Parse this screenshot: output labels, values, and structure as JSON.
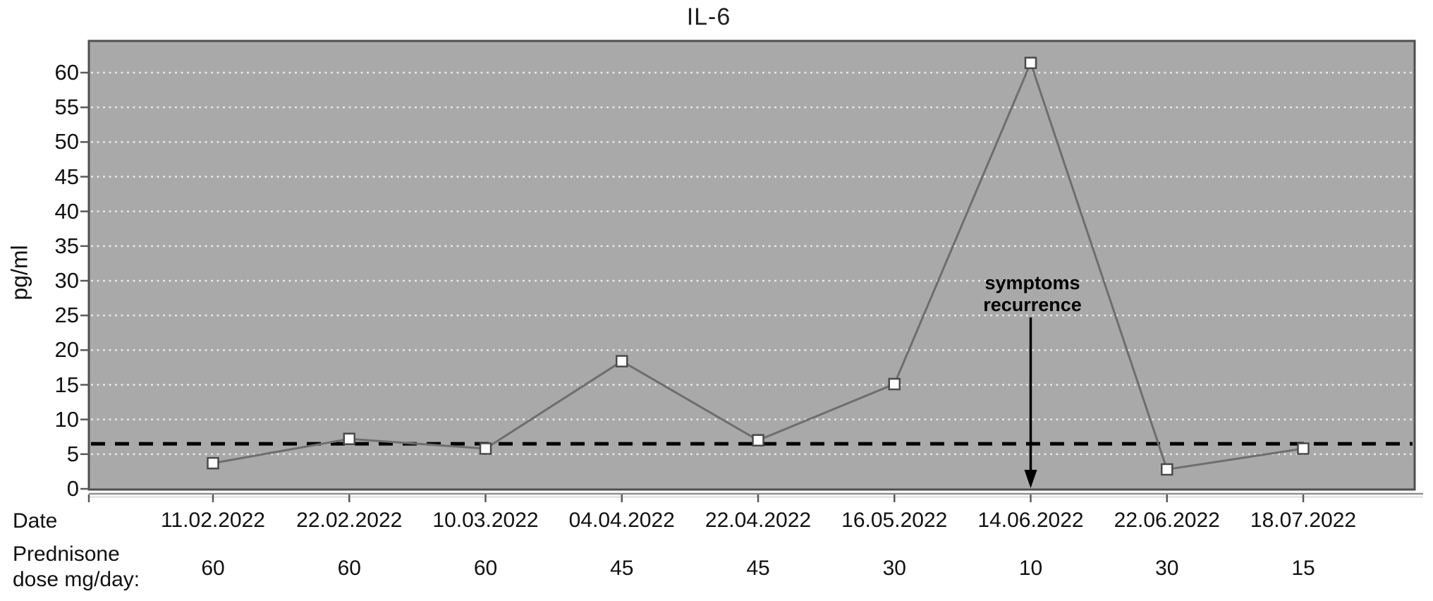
{
  "figure": {
    "title": "IL-6",
    "y_axis_label": "pg/ml",
    "date_row_label": "Date",
    "dose_label_line1": "Prednisone",
    "dose_label_line2": "dose mg/day:",
    "annotation_line1": "symptoms",
    "annotation_line2": "recurrence"
  },
  "chart_data": {
    "type": "line",
    "title": "IL-6",
    "xlabel": "Date",
    "ylabel": "pg/ml",
    "categories": [
      "11.02.2022",
      "22.02.2022",
      "10.03.2022",
      "04.04.2022",
      "22.04.2022",
      "16.05.2022",
      "14.06.2022",
      "22.06.2022",
      "18.07.2022"
    ],
    "series": [
      {
        "name": "IL-6 (pg/ml)",
        "values": [
          3.7,
          7.2,
          5.8,
          18.4,
          7.0,
          15.1,
          61.4,
          2.8,
          5.8
        ],
        "marker": "white-square",
        "line_color": "#6e6e6e"
      }
    ],
    "reference_line": {
      "value": 6.5,
      "style": "dashed",
      "color": "#000000"
    },
    "annotation": {
      "text": "symptoms recurrence",
      "at_category": "14.06.2022",
      "arrow": "down-to-x-axis"
    },
    "ylim": [
      0,
      64.6
    ],
    "yticks": [
      0,
      5,
      10,
      15,
      20,
      25,
      30,
      35,
      40,
      45,
      50,
      55,
      60
    ],
    "grid": "horizontal-dotted-white",
    "legend_position": "none",
    "plot_background": "#a9a9a9",
    "secondary_axis_row": {
      "label": "Prednisone dose mg/day:",
      "values": [
        60,
        60,
        60,
        45,
        45,
        30,
        10,
        30,
        15
      ]
    }
  },
  "colors": {
    "plot_bg": "#a9a9a9",
    "plot_border": "#4f4f4f",
    "gridline": "#e8e8e8",
    "series_line": "#6e6e6e",
    "marker_fill": "#ffffff",
    "marker_border": "#4a4a4a",
    "reference_line": "#000000",
    "axis_line": "#909090",
    "tick": "#5a5a5a",
    "text": "#111111"
  }
}
